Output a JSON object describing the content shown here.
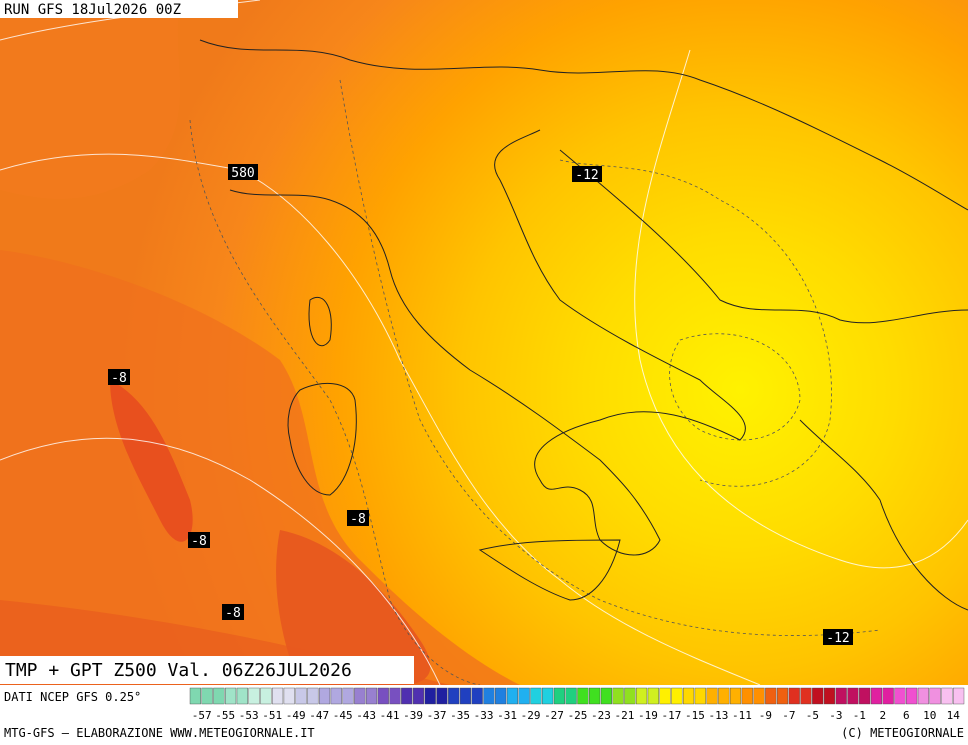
{
  "header": {
    "run": "RUN GFS 18Jul2026 00Z"
  },
  "map": {
    "title": "TMP + GPT Z500 Val. 06Z26JUL2026",
    "contour_labels": [
      "580",
      "-12",
      "-8",
      "-8",
      "-8",
      "-8",
      "-12"
    ]
  },
  "legend": {
    "source": "DATI NCEP GFS 0.25°",
    "scale": [
      -57,
      -55,
      -53,
      -51,
      -49,
      -47,
      -45,
      -43,
      -41,
      -39,
      -37,
      -35,
      -33,
      -31,
      -29,
      -27,
      -25,
      -23,
      -21,
      -19,
      -17,
      -15,
      -13,
      -11,
      -9,
      -7,
      -5,
      -3,
      -1,
      2,
      6,
      10,
      14
    ]
  },
  "footer": {
    "left": "MTG-GFS – ELABORAZIONE WWW.METEOGIORNALE.IT",
    "right": "(C) METEOGIORNALE"
  }
}
